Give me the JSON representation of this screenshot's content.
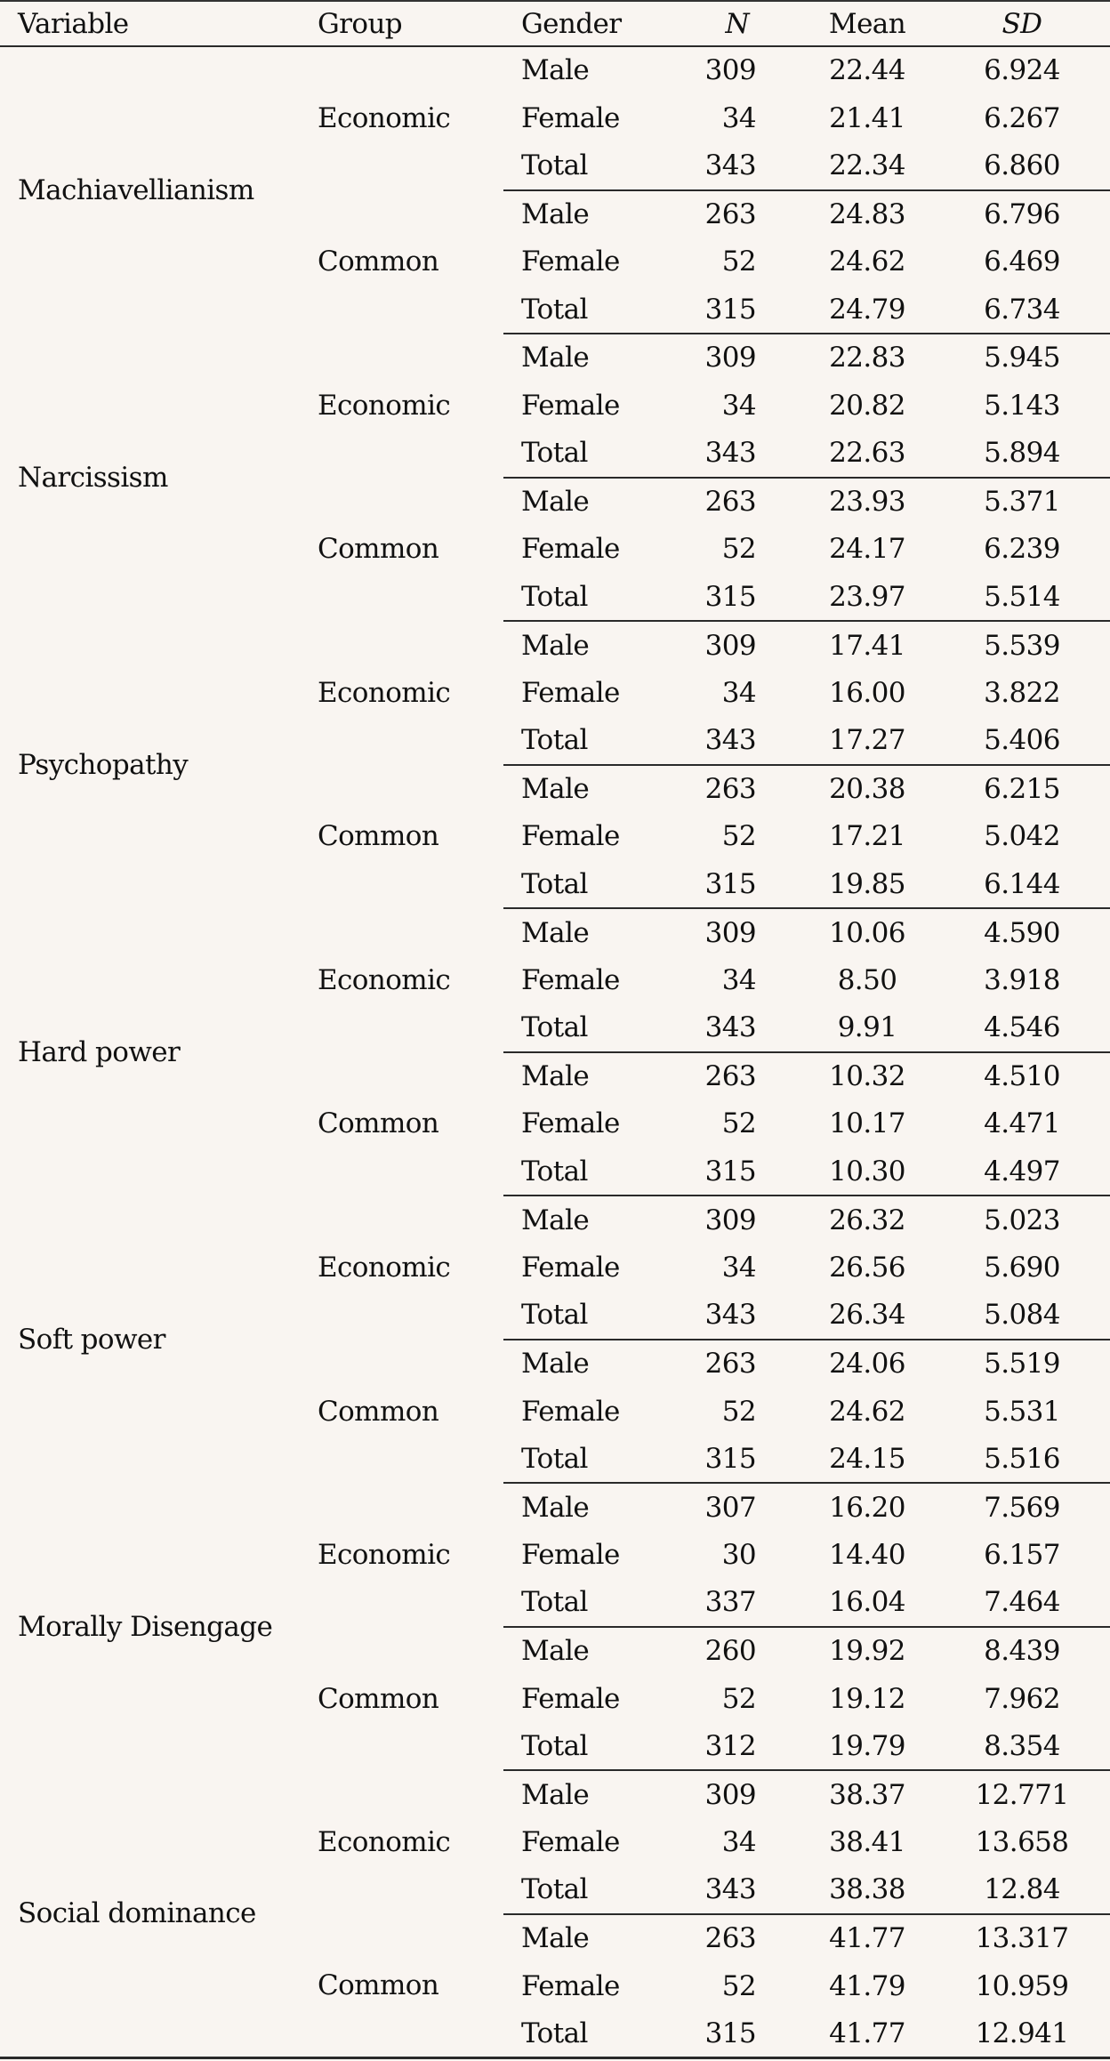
{
  "table": {
    "headers": {
      "variable": "Variable",
      "group": "Group",
      "gender": "Gender",
      "n": "N",
      "mean": "Mean",
      "sd": "SD"
    },
    "variables": [
      {
        "name": "Machiavellianism",
        "groups": [
          {
            "name": "Economic",
            "rows": [
              {
                "gender": "Male",
                "n": "309",
                "mean": "22.44",
                "sd": "6.924"
              },
              {
                "gender": "Female",
                "n": "34",
                "mean": "21.41",
                "sd": "6.267"
              },
              {
                "gender": "Total",
                "n": "343",
                "mean": "22.34",
                "sd": "6.860"
              }
            ]
          },
          {
            "name": "Common",
            "rows": [
              {
                "gender": "Male",
                "n": "263",
                "mean": "24.83",
                "sd": "6.796"
              },
              {
                "gender": "Female",
                "n": "52",
                "mean": "24.62",
                "sd": "6.469"
              },
              {
                "gender": "Total",
                "n": "315",
                "mean": "24.79",
                "sd": "6.734"
              }
            ]
          }
        ]
      },
      {
        "name": "Narcissism",
        "groups": [
          {
            "name": "Economic",
            "rows": [
              {
                "gender": "Male",
                "n": "309",
                "mean": "22.83",
                "sd": "5.945"
              },
              {
                "gender": "Female",
                "n": "34",
                "mean": "20.82",
                "sd": "5.143"
              },
              {
                "gender": "Total",
                "n": "343",
                "mean": "22.63",
                "sd": "5.894"
              }
            ]
          },
          {
            "name": "Common",
            "rows": [
              {
                "gender": "Male",
                "n": "263",
                "mean": "23.93",
                "sd": "5.371"
              },
              {
                "gender": "Female",
                "n": "52",
                "mean": "24.17",
                "sd": "6.239"
              },
              {
                "gender": "Total",
                "n": "315",
                "mean": "23.97",
                "sd": "5.514"
              }
            ]
          }
        ]
      },
      {
        "name": "Psychopathy",
        "groups": [
          {
            "name": "Economic",
            "rows": [
              {
                "gender": "Male",
                "n": "309",
                "mean": "17.41",
                "sd": "5.539"
              },
              {
                "gender": "Female",
                "n": "34",
                "mean": "16.00",
                "sd": "3.822"
              },
              {
                "gender": "Total",
                "n": "343",
                "mean": "17.27",
                "sd": "5.406"
              }
            ]
          },
          {
            "name": "Common",
            "rows": [
              {
                "gender": "Male",
                "n": "263",
                "mean": "20.38",
                "sd": "6.215"
              },
              {
                "gender": "Female",
                "n": "52",
                "mean": "17.21",
                "sd": "5.042"
              },
              {
                "gender": "Total",
                "n": "315",
                "mean": "19.85",
                "sd": "6.144"
              }
            ]
          }
        ]
      },
      {
        "name": "Hard power",
        "groups": [
          {
            "name": "Economic",
            "rows": [
              {
                "gender": "Male",
                "n": "309",
                "mean": "10.06",
                "sd": "4.590"
              },
              {
                "gender": "Female",
                "n": "34",
                "mean": "8.50",
                "sd": "3.918"
              },
              {
                "gender": "Total",
                "n": "343",
                "mean": "9.91",
                "sd": "4.546"
              }
            ]
          },
          {
            "name": "Common",
            "rows": [
              {
                "gender": "Male",
                "n": "263",
                "mean": "10.32",
                "sd": "4.510"
              },
              {
                "gender": "Female",
                "n": "52",
                "mean": "10.17",
                "sd": "4.471"
              },
              {
                "gender": "Total",
                "n": "315",
                "mean": "10.30",
                "sd": "4.497"
              }
            ]
          }
        ]
      },
      {
        "name": "Soft power",
        "groups": [
          {
            "name": "Economic",
            "rows": [
              {
                "gender": "Male",
                "n": "309",
                "mean": "26.32",
                "sd": "5.023"
              },
              {
                "gender": "Female",
                "n": "34",
                "mean": "26.56",
                "sd": "5.690"
              },
              {
                "gender": "Total",
                "n": "343",
                "mean": "26.34",
                "sd": "5.084"
              }
            ]
          },
          {
            "name": "Common",
            "rows": [
              {
                "gender": "Male",
                "n": "263",
                "mean": "24.06",
                "sd": "5.519"
              },
              {
                "gender": "Female",
                "n": "52",
                "mean": "24.62",
                "sd": "5.531"
              },
              {
                "gender": "Total",
                "n": "315",
                "mean": "24.15",
                "sd": "5.516"
              }
            ]
          }
        ]
      },
      {
        "name": "Morally Disengage",
        "groups": [
          {
            "name": "Economic",
            "rows": [
              {
                "gender": "Male",
                "n": "307",
                "mean": "16.20",
                "sd": "7.569"
              },
              {
                "gender": "Female",
                "n": "30",
                "mean": "14.40",
                "sd": "6.157"
              },
              {
                "gender": "Total",
                "n": "337",
                "mean": "16.04",
                "sd": "7.464"
              }
            ]
          },
          {
            "name": "Common",
            "rows": [
              {
                "gender": "Male",
                "n": "260",
                "mean": "19.92",
                "sd": "8.439"
              },
              {
                "gender": "Female",
                "n": "52",
                "mean": "19.12",
                "sd": "7.962"
              },
              {
                "gender": "Total",
                "n": "312",
                "mean": "19.79",
                "sd": "8.354"
              }
            ]
          }
        ]
      },
      {
        "name": "Social dominance",
        "groups": [
          {
            "name": "Economic",
            "rows": [
              {
                "gender": "Male",
                "n": "309",
                "mean": "38.37",
                "sd": "12.771"
              },
              {
                "gender": "Female",
                "n": "34",
                "mean": "38.41",
                "sd": "13.658"
              },
              {
                "gender": "Total",
                "n": "343",
                "mean": "38.38",
                "sd": "12.84"
              }
            ]
          },
          {
            "name": "Common",
            "rows": [
              {
                "gender": "Male",
                "n": "263",
                "mean": "41.77",
                "sd": "13.317"
              },
              {
                "gender": "Female",
                "n": "52",
                "mean": "41.79",
                "sd": "10.959"
              },
              {
                "gender": "Total",
                "n": "315",
                "mean": "41.77",
                "sd": "12.941"
              }
            ]
          }
        ]
      }
    ]
  }
}
